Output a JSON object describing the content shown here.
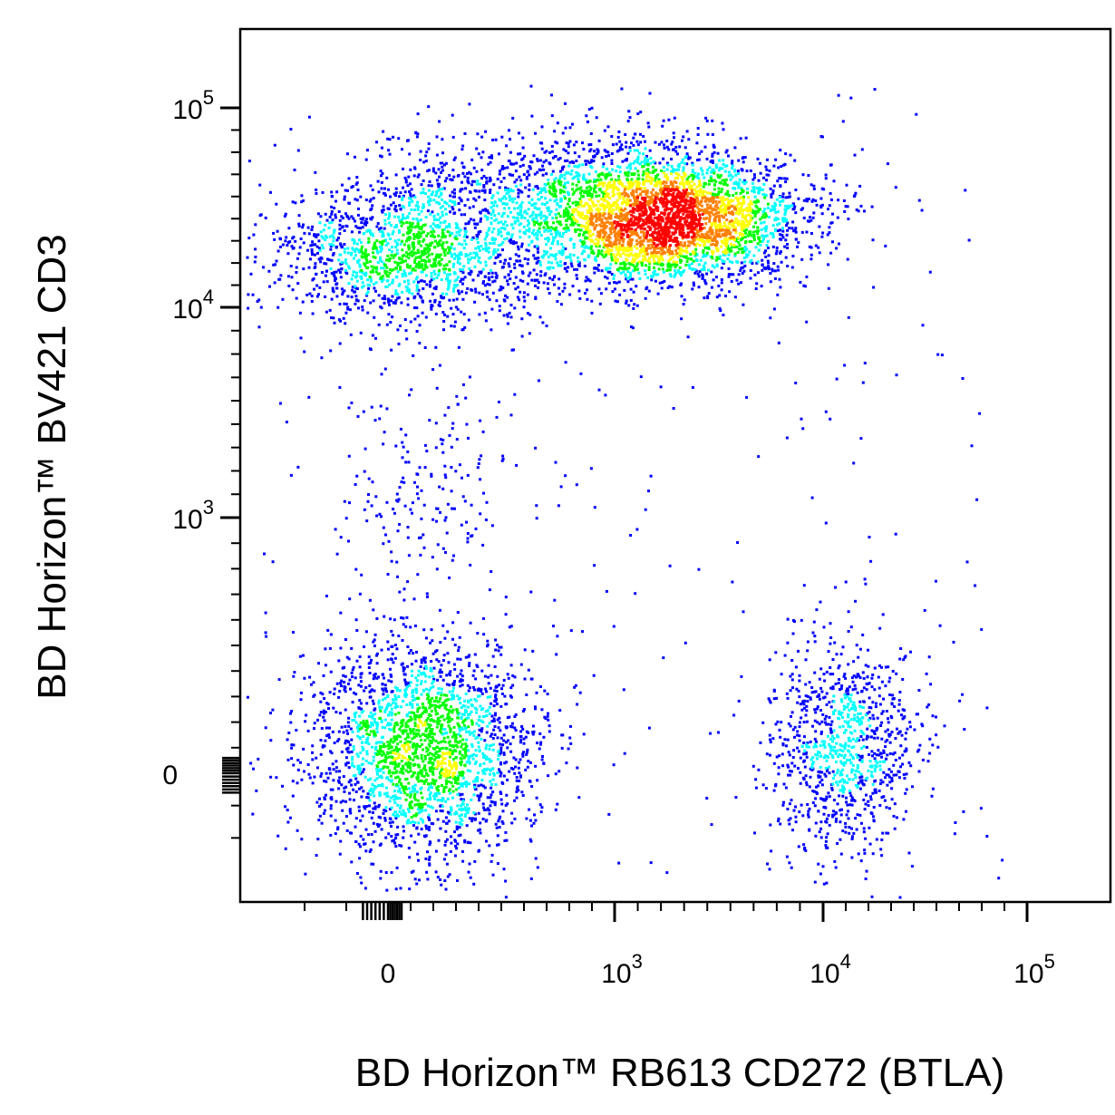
{
  "chart_data": {
    "type": "scatter",
    "style": "density-colored dot plot (flow cytometry)",
    "xlabel": "BD Horizon™ RB613 CD272 (BTLA)",
    "ylabel": "BD Horizon™ BV421 CD3",
    "x_scale": "biexponential",
    "y_scale": "biexponential",
    "x_ticks": [
      {
        "value": 0,
        "base": "0",
        "exp": ""
      },
      {
        "value": 1000,
        "base": "10",
        "exp": "3"
      },
      {
        "value": 10000,
        "base": "10",
        "exp": "4"
      },
      {
        "value": 100000,
        "base": "10",
        "exp": "5"
      }
    ],
    "y_ticks": [
      {
        "value": 0,
        "base": "0",
        "exp": ""
      },
      {
        "value": 1000,
        "base": "10",
        "exp": "3"
      },
      {
        "value": 10000,
        "base": "10",
        "exp": "4"
      },
      {
        "value": 100000,
        "base": "10",
        "exp": "5"
      }
    ],
    "grid": false,
    "legend": "none",
    "density_colors": [
      "#0000ff",
      "#00ffff",
      "#00ff00",
      "#ffff00",
      "#ff8000",
      "#ff0000"
    ],
    "populations": [
      {
        "name": "",
        "x_center": 3000,
        "y_center": 50000,
        "relative_density": "high"
      },
      {
        "name": "",
        "x_center": 100,
        "y_center": 35000,
        "relative_density": "medium"
      },
      {
        "name": "",
        "x_center": 150,
        "y_center": 100,
        "relative_density": "medium"
      },
      {
        "name": "",
        "x_center": 18000,
        "y_center": 100,
        "relative_density": "low"
      },
      {
        "name": "",
        "x_center": 150,
        "y_center": 2500,
        "relative_density": "sparse"
      }
    ]
  }
}
